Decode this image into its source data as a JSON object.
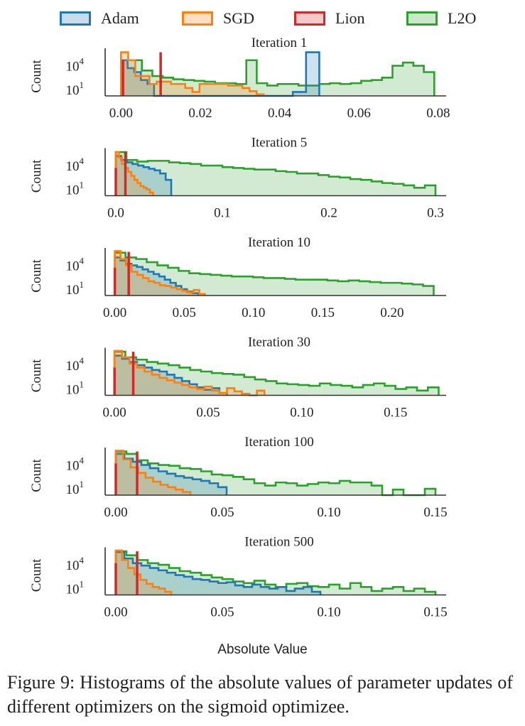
{
  "legend": [
    {
      "name": "Adam",
      "color": "#1f77b4"
    },
    {
      "name": "SGD",
      "color": "#ff7f0e"
    },
    {
      "name": "Lion",
      "color": "#d62728"
    },
    {
      "name": "L2O",
      "color": "#2ca02c"
    }
  ],
  "xlabel": "Absolute Value",
  "caption": "Figure 9: Histograms of the absolute values of parameter updates of different optimizers on the sigmoid optimizee.",
  "chart_data": [
    {
      "type": "histogram",
      "title": "Iteration 1",
      "ylabel": "Count",
      "yscale": "log",
      "yticks": [
        {
          "label": "10",
          "exp": "4"
        },
        {
          "label": "10",
          "exp": "1"
        }
      ],
      "xlim": [
        -0.004,
        0.082
      ],
      "xticks": [
        "0.00",
        "0.02",
        "0.04",
        "0.06",
        "0.08"
      ],
      "xtick_values": [
        0.0,
        0.02,
        0.04,
        0.06,
        0.08
      ],
      "series": [
        {
          "name": "L2O",
          "color": "#2ca02c",
          "x_range": [
            0.0,
            0.079
          ],
          "log_counts": [
            4.5,
            4.5,
            3.2,
            2.5,
            2.3,
            2.1,
            2.0,
            1.9,
            1.8,
            1.6,
            1.6,
            1.5,
            4.5,
            1.6,
            1.3,
            1.5,
            1.5,
            1.3,
            1.3,
            1.5,
            1.6,
            1.5,
            1.6,
            1.9,
            2.0,
            2.3,
            3.8,
            4.2,
            3.8,
            3.0
          ]
        },
        {
          "name": "SGD",
          "color": "#ff7f0e",
          "x_range": [
            0.0,
            0.036
          ],
          "log_counts": [
            5.5,
            4.5,
            2.5,
            2.5,
            1.5,
            1.8,
            1.8,
            1.5,
            1.5,
            1.0,
            0.5,
            1.5,
            1.5,
            1.5,
            1.5,
            1.3,
            1.3,
            1.0,
            0.6,
            0.2
          ]
        },
        {
          "name": "Adam",
          "color": "#1f77b4",
          "x_range": [
            0.0,
            0.05
          ],
          "log_counts": [
            4.5,
            3.5,
            3.0,
            2.0,
            1.5,
            0,
            0,
            0,
            0,
            0,
            0,
            0,
            0,
            0,
            0,
            0,
            0,
            0,
            0,
            0,
            0,
            0,
            0,
            0,
            0,
            0,
            0.5,
            0.5,
            5.5,
            5.5
          ]
        },
        {
          "name": "Lion",
          "color": "#d62728",
          "spikes": [
            {
              "x": 0.0005,
              "log_count": 4.5
            },
            {
              "x": 0.01,
              "log_count": 5.5
            }
          ]
        }
      ]
    },
    {
      "type": "histogram",
      "title": "Iteration 5",
      "ylabel": "Count",
      "yscale": "log",
      "yticks": [
        {
          "label": "10",
          "exp": "4"
        },
        {
          "label": "10",
          "exp": "1"
        }
      ],
      "xlim": [
        -0.01,
        0.31
      ],
      "xticks": [
        "0.0",
        "0.1",
        "0.2",
        "0.3"
      ],
      "xtick_values": [
        0.0,
        0.1,
        0.2,
        0.3
      ],
      "series": [
        {
          "name": "L2O",
          "color": "#2ca02c",
          "x_range": [
            0.0,
            0.3
          ],
          "log_counts": [
            5.5,
            4.5,
            4.3,
            4.4,
            4.4,
            4.2,
            4.1,
            4.0,
            3.8,
            3.8,
            3.6,
            3.5,
            3.4,
            3.3,
            3.3,
            3.1,
            3.0,
            2.8,
            2.8,
            2.6,
            2.4,
            2.3,
            2.1,
            2.0,
            1.8,
            1.6,
            1.5,
            1.3,
            1.0,
            1.3
          ]
        },
        {
          "name": "Adam",
          "color": "#1f77b4",
          "x_range": [
            0.0,
            0.052
          ],
          "log_counts": [
            5.0,
            4.5,
            4.2,
            4.0,
            3.8,
            3.6,
            3.4,
            3.2,
            2.8,
            2.0
          ]
        },
        {
          "name": "SGD",
          "color": "#ff7f0e",
          "x_range": [
            0.0,
            0.035
          ],
          "log_counts": [
            5.5,
            4.8,
            4.0,
            3.5,
            3.0,
            2.5,
            2.0,
            1.6,
            1.2,
            1.0,
            0.8,
            0.4
          ]
        },
        {
          "name": "Lion",
          "color": "#d62728",
          "spikes": [
            {
              "x": 0.0,
              "log_count": 3.5
            },
            {
              "x": 0.009,
              "log_count": 5.5
            }
          ]
        }
      ]
    },
    {
      "type": "histogram",
      "title": "Iteration 10",
      "ylabel": "Count",
      "yscale": "log",
      "yticks": [
        {
          "label": "10",
          "exp": "4"
        },
        {
          "label": "10",
          "exp": "1"
        }
      ],
      "xlim": [
        -0.007,
        0.239
      ],
      "xticks": [
        "0.00",
        "0.05",
        "0.10",
        "0.15",
        "0.20"
      ],
      "xtick_values": [
        0.0,
        0.05,
        0.1,
        0.15,
        0.2
      ],
      "series": [
        {
          "name": "L2O",
          "color": "#2ca02c",
          "x_range": [
            0.0,
            0.23
          ],
          "log_counts": [
            5.4,
            4.8,
            4.6,
            4.2,
            3.8,
            3.5,
            3.1,
            2.8,
            2.7,
            2.6,
            2.5,
            2.4,
            2.4,
            2.3,
            2.2,
            2.2,
            2.1,
            2.0,
            2.0,
            2.0,
            1.9,
            1.8,
            1.9,
            1.8,
            1.7,
            1.6,
            1.6,
            1.5,
            1.4,
            1.2
          ]
        },
        {
          "name": "Adam",
          "color": "#1f77b4",
          "x_range": [
            0.0,
            0.06
          ],
          "log_counts": [
            4.8,
            4.4,
            4.0,
            3.8,
            3.6,
            3.3,
            3.0,
            2.7,
            2.4,
            2.0,
            1.6,
            1.2,
            0.8,
            0.5,
            0.3
          ]
        },
        {
          "name": "SGD",
          "color": "#ff7f0e",
          "x_range": [
            0.0,
            0.065
          ],
          "log_counts": [
            5.6,
            4.6,
            3.8,
            3.0,
            2.6,
            2.2,
            1.8,
            1.6,
            1.3,
            1.2,
            1.0,
            0.8,
            0.6,
            0.4,
            0.7,
            0.2
          ]
        },
        {
          "name": "Lion",
          "color": "#d62728",
          "spikes": [
            {
              "x": 0.0,
              "log_count": 3.5
            },
            {
              "x": 0.01,
              "log_count": 5.5
            }
          ]
        }
      ]
    },
    {
      "type": "histogram",
      "title": "Iteration 30",
      "ylabel": "Count",
      "yscale": "log",
      "yticks": [
        {
          "label": "10",
          "exp": "4"
        },
        {
          "label": "10",
          "exp": "1"
        }
      ],
      "xlim": [
        -0.005,
        0.177
      ],
      "xticks": [
        "0.00",
        "0.05",
        "0.10",
        "0.15"
      ],
      "xtick_values": [
        0.0,
        0.05,
        0.1,
        0.15
      ],
      "series": [
        {
          "name": "L2O",
          "color": "#2ca02c",
          "x_range": [
            0.0,
            0.173
          ],
          "log_counts": [
            5.5,
            4.8,
            4.5,
            4.2,
            4.0,
            3.8,
            3.5,
            3.2,
            3.0,
            2.8,
            2.7,
            2.6,
            2.3,
            2.0,
            1.8,
            1.5,
            1.4,
            1.3,
            1.2,
            1.5,
            1.3,
            1.2,
            1.0,
            1.3,
            1.5,
            1.2,
            0.8,
            1.0,
            0.6,
            1.0
          ]
        },
        {
          "name": "Adam",
          "color": "#1f77b4",
          "x_range": [
            0.0,
            0.06
          ],
          "log_counts": [
            5.0,
            4.6,
            4.2,
            3.8,
            3.5,
            3.2,
            3.0,
            2.6,
            2.2,
            1.8,
            1.4,
            1.0,
            0.7,
            0.9,
            0.3
          ]
        },
        {
          "name": "SGD",
          "color": "#ff7f0e",
          "x_range": [
            0.0,
            0.08
          ],
          "log_counts": [
            5.6,
            4.8,
            4.0,
            3.5,
            3.0,
            2.6,
            2.2,
            1.9,
            1.6,
            1.3,
            1.0,
            0.8,
            1.1,
            0.6,
            0.3,
            0.9,
            0.5,
            0.2,
            0,
            0.6
          ]
        },
        {
          "name": "Lion",
          "color": "#d62728",
          "spikes": [
            {
              "x": 0.0,
              "log_count": 3.5
            },
            {
              "x": 0.01,
              "log_count": 5.5
            }
          ]
        }
      ]
    },
    {
      "type": "histogram",
      "title": "Iteration 100",
      "ylabel": "Count",
      "yscale": "log",
      "yticks": [
        {
          "label": "10",
          "exp": "4"
        },
        {
          "label": "10",
          "exp": "1"
        }
      ],
      "xlim": [
        -0.005,
        0.155
      ],
      "xticks": [
        "0.00",
        "0.05",
        "0.10",
        "0.15"
      ],
      "xtick_values": [
        0.0,
        0.05,
        0.1,
        0.15
      ],
      "series": [
        {
          "name": "L2O",
          "color": "#2ca02c",
          "x_range": [
            0.0,
            0.15
          ],
          "log_counts": [
            5.5,
            5.2,
            4.4,
            4.0,
            3.8,
            3.7,
            3.4,
            3.3,
            3.0,
            2.6,
            2.5,
            2.3,
            2.0,
            1.5,
            1.2,
            1.6,
            1.5,
            1.2,
            1.4,
            1.6,
            1.5,
            1.8,
            1.6,
            1.6,
            1.2,
            0,
            0.7,
            0,
            0,
            0.8
          ]
        },
        {
          "name": "Adam",
          "color": "#1f77b4",
          "x_range": [
            0.0,
            0.052
          ],
          "log_counts": [
            5.2,
            4.6,
            4.2,
            3.8,
            3.4,
            3.0,
            2.7,
            2.4,
            2.2,
            2.0,
            1.8,
            1.5,
            1.0
          ]
        },
        {
          "name": "SGD",
          "color": "#ff7f0e",
          "x_range": [
            0.0,
            0.035
          ],
          "log_counts": [
            5.6,
            4.5,
            3.5,
            2.8,
            2.2,
            1.7,
            1.3,
            1.0,
            0.7,
            0.4
          ]
        },
        {
          "name": "Lion",
          "color": "#d62728",
          "spikes": [
            {
              "x": 0.0,
              "log_count": 4.0
            },
            {
              "x": 0.01,
              "log_count": 5.5
            }
          ]
        }
      ]
    },
    {
      "type": "histogram",
      "title": "Iteration 500",
      "ylabel": "Count",
      "yscale": "log",
      "yticks": [
        {
          "label": "10",
          "exp": "4"
        },
        {
          "label": "10",
          "exp": "1"
        }
      ],
      "xlim": [
        -0.005,
        0.155
      ],
      "xticks": [
        "0.00",
        "0.05",
        "0.10",
        "0.15"
      ],
      "xtick_values": [
        0.0,
        0.05,
        0.1,
        0.15
      ],
      "series": [
        {
          "name": "L2O",
          "color": "#2ca02c",
          "x_range": [
            0.0,
            0.15
          ],
          "log_counts": [
            5.5,
            5.0,
            4.4,
            4.0,
            3.8,
            3.4,
            3.0,
            2.8,
            2.5,
            2.2,
            2.0,
            1.7,
            1.5,
            1.8,
            1.3,
            1.0,
            1.4,
            1.5,
            1.1,
            1.0,
            1.3,
            0.8,
            1.5,
            1.0,
            0.5,
            0.8,
            1.0,
            0.5,
            0.8,
            0.4
          ]
        },
        {
          "name": "Adam",
          "color": "#1f77b4",
          "x_range": [
            0.0,
            0.096
          ],
          "log_counts": [
            5.4,
            4.6,
            4.0,
            3.7,
            3.4,
            3.1,
            2.8,
            2.5,
            2.3,
            2.0,
            1.9,
            1.7,
            1.5,
            1.6,
            1.2,
            1.0,
            1.3,
            1.0,
            0.8,
            1.0,
            0.5,
            0.8,
            1.0,
            0.4
          ]
        },
        {
          "name": "SGD",
          "color": "#ff7f0e",
          "x_range": [
            0.0,
            0.026
          ],
          "log_counts": [
            5.6,
            4.4,
            3.4,
            2.6,
            1.9,
            1.4,
            1.0,
            0.8,
            0.4
          ]
        },
        {
          "name": "Lion",
          "color": "#d62728",
          "spikes": [
            {
              "x": 0.0,
              "log_count": 4.0
            },
            {
              "x": 0.01,
              "log_count": 5.5
            }
          ]
        }
      ]
    }
  ]
}
